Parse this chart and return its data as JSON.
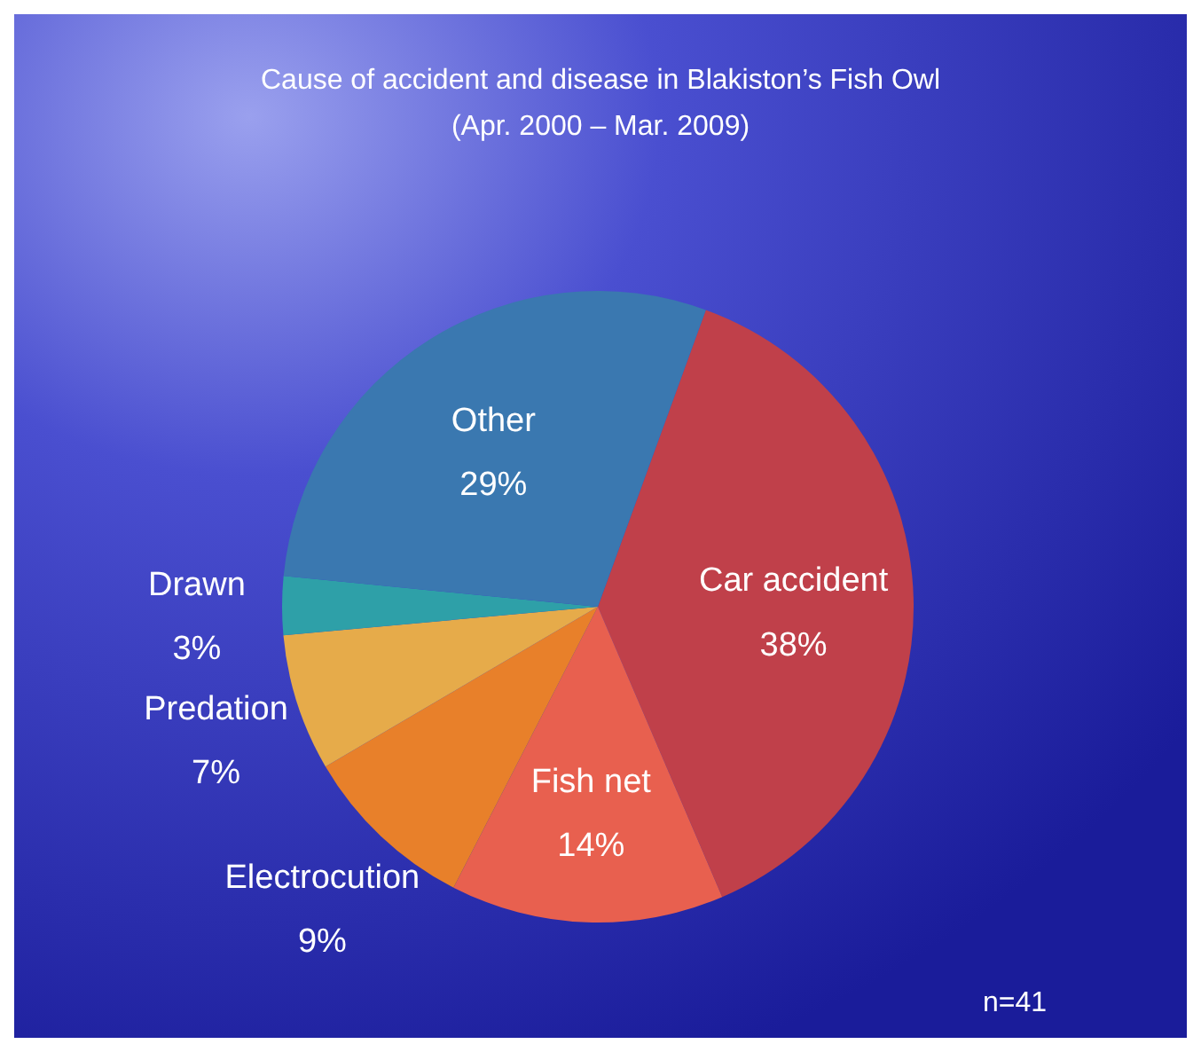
{
  "chart_data": {
    "type": "pie",
    "title": "Cause of accident and disease in Blakiston’s Fish Owl",
    "subtitle": "(Apr. 2000 – Mar. 2009)",
    "categories": [
      "Car accident",
      "Fish net",
      "Electrocution",
      "Predation",
      "Drawn",
      "Other"
    ],
    "values": [
      38,
      14,
      9,
      7,
      3,
      29
    ],
    "colors": [
      "#c0404a",
      "#e8604f",
      "#e8802a",
      "#e6ab4a",
      "#2ea0a8",
      "#3a78b0"
    ],
    "value_labels": [
      "38%",
      "14%",
      "9%",
      "7%",
      "3%",
      "29%"
    ],
    "annotations": [
      "n=41"
    ]
  }
}
